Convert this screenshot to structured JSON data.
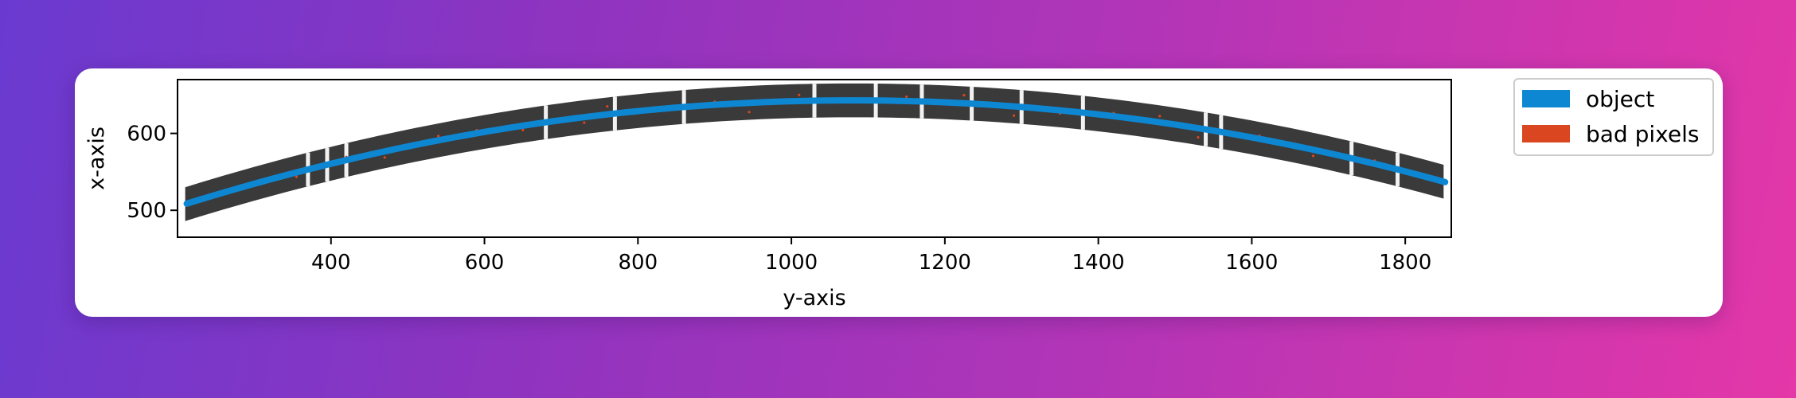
{
  "chart_data": {
    "type": "scatter",
    "title": "",
    "xlabel": "y-axis",
    "ylabel": "x-axis",
    "xlim": [
      200,
      1860
    ],
    "ylim": [
      465,
      670
    ],
    "xticks": [
      400,
      600,
      800,
      1000,
      1200,
      1400,
      1600,
      1800
    ],
    "yticks": [
      500,
      600
    ],
    "grid": false,
    "legend_position": "outside-top-right",
    "series": [
      {
        "name": "object",
        "color": "#0e87d2",
        "x": [
          215,
          260,
          310,
          360,
          410,
          460,
          510,
          560,
          610,
          660,
          710,
          760,
          810,
          860,
          910,
          960,
          1010,
          1060,
          1110,
          1160,
          1210,
          1260,
          1310,
          1360,
          1410,
          1460,
          1510,
          1560,
          1610,
          1660,
          1710,
          1760,
          1800,
          1845
        ],
        "y": [
          502,
          515,
          530,
          545,
          560,
          573,
          585,
          597,
          607,
          615,
          622,
          628,
          633,
          637,
          640,
          642,
          643,
          643,
          642,
          640,
          637,
          633,
          628,
          621,
          613,
          604,
          594,
          583,
          571,
          560,
          571,
          560,
          556,
          547
        ]
      },
      {
        "name": "bad pixels",
        "color": "#d9461f",
        "x": [
          300,
          355,
          420,
          470,
          540,
          590,
          650,
          730,
          760,
          850,
          900,
          945,
          1010,
          1075,
          1150,
          1225,
          1290,
          1350,
          1420,
          1480,
          1530,
          1610,
          1680,
          1760
        ],
        "y": [
          525,
          548,
          560,
          575,
          592,
          620,
          608,
          636,
          628,
          642,
          650,
          630,
          655,
          648,
          652,
          658,
          630,
          640,
          620,
          625,
          600,
          590,
          575,
          560
        ]
      }
    ]
  }
}
